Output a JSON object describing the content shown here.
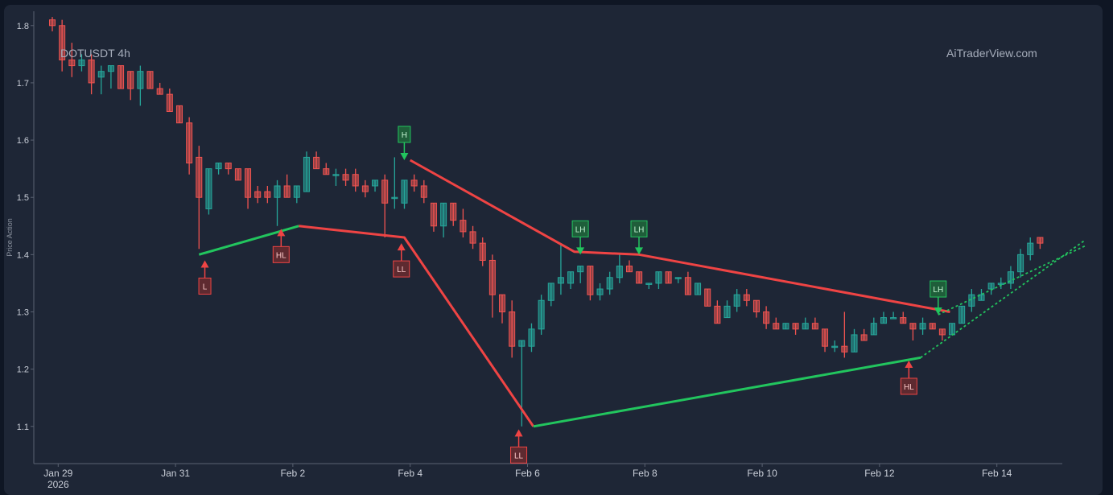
{
  "header": {
    "symbol": "DOTUSDT 4h",
    "brand": "AiTraderView.com"
  },
  "colors": {
    "background": "#1e2636",
    "up": "#26a69a",
    "down": "#ef5350",
    "support": "#22c55e",
    "resistance": "#ef4444",
    "axis_text": "#c9ced8"
  },
  "chart_data": {
    "type": "candlestick",
    "ylabel": "Price Action",
    "ylim": [
      1.035,
      1.825
    ],
    "y_ticks": [
      1.1,
      1.2,
      1.3,
      1.4,
      1.5,
      1.6,
      1.7,
      1.8
    ],
    "x_ticks": [
      {
        "t": 0.1,
        "label": "Jan 29",
        "sub": "2026"
      },
      {
        "t": 2.1,
        "label": "Jan 31"
      },
      {
        "t": 4.1,
        "label": "Feb 2"
      },
      {
        "t": 6.1,
        "label": "Feb 4"
      },
      {
        "t": 8.1,
        "label": "Feb 6"
      },
      {
        "t": 10.1,
        "label": "Feb 8"
      },
      {
        "t": 12.1,
        "label": "Feb 10"
      },
      {
        "t": 14.1,
        "label": "Feb 12"
      },
      {
        "t": 16.1,
        "label": "Feb 14"
      }
    ],
    "x_start_day": 0,
    "candle_step_days": 0.1667,
    "candles": [
      [
        1.81,
        1.815,
        1.79,
        1.8
      ],
      [
        1.8,
        1.81,
        1.72,
        1.74
      ],
      [
        1.74,
        1.77,
        1.71,
        1.73
      ],
      [
        1.73,
        1.75,
        1.72,
        1.74
      ],
      [
        1.74,
        1.75,
        1.68,
        1.7
      ],
      [
        1.71,
        1.73,
        1.68,
        1.72
      ],
      [
        1.72,
        1.73,
        1.69,
        1.73
      ],
      [
        1.73,
        1.73,
        1.69,
        1.69
      ],
      [
        1.72,
        1.72,
        1.67,
        1.69
      ],
      [
        1.69,
        1.73,
        1.66,
        1.72
      ],
      [
        1.72,
        1.72,
        1.69,
        1.69
      ],
      [
        1.69,
        1.7,
        1.68,
        1.68
      ],
      [
        1.68,
        1.69,
        1.65,
        1.65
      ],
      [
        1.66,
        1.66,
        1.63,
        1.63
      ],
      [
        1.63,
        1.64,
        1.54,
        1.56
      ],
      [
        1.57,
        1.59,
        1.41,
        1.5
      ],
      [
        1.48,
        1.55,
        1.47,
        1.55
      ],
      [
        1.55,
        1.56,
        1.54,
        1.56
      ],
      [
        1.56,
        1.56,
        1.54,
        1.55
      ],
      [
        1.55,
        1.55,
        1.53,
        1.53
      ],
      [
        1.55,
        1.55,
        1.48,
        1.5
      ],
      [
        1.51,
        1.52,
        1.49,
        1.5
      ],
      [
        1.51,
        1.52,
        1.49,
        1.5
      ],
      [
        1.5,
        1.53,
        1.45,
        1.52
      ],
      [
        1.52,
        1.54,
        1.5,
        1.5
      ],
      [
        1.5,
        1.52,
        1.49,
        1.52
      ],
      [
        1.51,
        1.58,
        1.51,
        1.57
      ],
      [
        1.57,
        1.58,
        1.55,
        1.55
      ],
      [
        1.55,
        1.56,
        1.54,
        1.54
      ],
      [
        1.54,
        1.55,
        1.52,
        1.54
      ],
      [
        1.54,
        1.55,
        1.52,
        1.53
      ],
      [
        1.54,
        1.55,
        1.51,
        1.52
      ],
      [
        1.52,
        1.53,
        1.5,
        1.51
      ],
      [
        1.52,
        1.53,
        1.51,
        1.53
      ],
      [
        1.53,
        1.54,
        1.43,
        1.49
      ],
      [
        1.5,
        1.57,
        1.48,
        1.5
      ],
      [
        1.49,
        1.53,
        1.48,
        1.53
      ],
      [
        1.53,
        1.54,
        1.51,
        1.52
      ],
      [
        1.52,
        1.53,
        1.49,
        1.5
      ],
      [
        1.49,
        1.49,
        1.44,
        1.45
      ],
      [
        1.45,
        1.49,
        1.43,
        1.49
      ],
      [
        1.49,
        1.49,
        1.45,
        1.46
      ],
      [
        1.46,
        1.48,
        1.43,
        1.44
      ],
      [
        1.44,
        1.45,
        1.41,
        1.42
      ],
      [
        1.42,
        1.43,
        1.38,
        1.39
      ],
      [
        1.39,
        1.4,
        1.29,
        1.33
      ],
      [
        1.33,
        1.33,
        1.28,
        1.3
      ],
      [
        1.3,
        1.32,
        1.22,
        1.24
      ],
      [
        1.24,
        1.25,
        1.1,
        1.25
      ],
      [
        1.24,
        1.28,
        1.23,
        1.27
      ],
      [
        1.27,
        1.33,
        1.26,
        1.32
      ],
      [
        1.32,
        1.35,
        1.31,
        1.35
      ],
      [
        1.35,
        1.42,
        1.33,
        1.36
      ],
      [
        1.35,
        1.37,
        1.34,
        1.37
      ],
      [
        1.37,
        1.38,
        1.35,
        1.38
      ],
      [
        1.38,
        1.38,
        1.32,
        1.33
      ],
      [
        1.33,
        1.35,
        1.32,
        1.34
      ],
      [
        1.34,
        1.37,
        1.33,
        1.36
      ],
      [
        1.36,
        1.4,
        1.35,
        1.38
      ],
      [
        1.38,
        1.39,
        1.37,
        1.37
      ],
      [
        1.37,
        1.37,
        1.35,
        1.35
      ],
      [
        1.35,
        1.35,
        1.34,
        1.35
      ],
      [
        1.35,
        1.37,
        1.34,
        1.37
      ],
      [
        1.37,
        1.37,
        1.35,
        1.35
      ],
      [
        1.36,
        1.36,
        1.35,
        1.36
      ],
      [
        1.36,
        1.37,
        1.33,
        1.33
      ],
      [
        1.33,
        1.35,
        1.33,
        1.35
      ],
      [
        1.34,
        1.34,
        1.31,
        1.31
      ],
      [
        1.31,
        1.32,
        1.28,
        1.28
      ],
      [
        1.29,
        1.32,
        1.29,
        1.31
      ],
      [
        1.31,
        1.34,
        1.3,
        1.33
      ],
      [
        1.33,
        1.34,
        1.31,
        1.32
      ],
      [
        1.32,
        1.32,
        1.29,
        1.3
      ],
      [
        1.3,
        1.31,
        1.27,
        1.28
      ],
      [
        1.28,
        1.29,
        1.27,
        1.27
      ],
      [
        1.27,
        1.28,
        1.27,
        1.28
      ],
      [
        1.28,
        1.28,
        1.26,
        1.27
      ],
      [
        1.27,
        1.29,
        1.27,
        1.28
      ],
      [
        1.28,
        1.29,
        1.27,
        1.27
      ],
      [
        1.27,
        1.27,
        1.23,
        1.24
      ],
      [
        1.24,
        1.25,
        1.23,
        1.24
      ],
      [
        1.24,
        1.3,
        1.22,
        1.23
      ],
      [
        1.23,
        1.27,
        1.23,
        1.26
      ],
      [
        1.26,
        1.27,
        1.25,
        1.25
      ],
      [
        1.26,
        1.29,
        1.26,
        1.28
      ],
      [
        1.28,
        1.3,
        1.28,
        1.29
      ],
      [
        1.29,
        1.3,
        1.29,
        1.29
      ],
      [
        1.29,
        1.3,
        1.28,
        1.28
      ],
      [
        1.28,
        1.28,
        1.25,
        1.27
      ],
      [
        1.27,
        1.29,
        1.26,
        1.28
      ],
      [
        1.28,
        1.28,
        1.27,
        1.27
      ],
      [
        1.27,
        1.27,
        1.25,
        1.26
      ],
      [
        1.26,
        1.28,
        1.26,
        1.28
      ],
      [
        1.28,
        1.31,
        1.28,
        1.31
      ],
      [
        1.31,
        1.34,
        1.3,
        1.33
      ],
      [
        1.32,
        1.34,
        1.32,
        1.33
      ],
      [
        1.34,
        1.35,
        1.33,
        1.35
      ],
      [
        1.35,
        1.36,
        1.34,
        1.35
      ],
      [
        1.35,
        1.38,
        1.34,
        1.37
      ],
      [
        1.37,
        1.41,
        1.36,
        1.4
      ],
      [
        1.4,
        1.43,
        1.39,
        1.42
      ],
      [
        1.43,
        1.43,
        1.41,
        1.42
      ]
    ],
    "resistance_line": [
      [
        6.1,
        1.565
      ],
      [
        8.9,
        1.405
      ],
      [
        10.0,
        1.4
      ],
      [
        15.3,
        1.3
      ]
    ],
    "support_lines": [
      [
        [
          2.5,
          1.4
        ],
        [
          4.2,
          1.45
        ],
        [
          6.0,
          1.43
        ],
        [
          8.2,
          1.1
        ],
        [
          14.8,
          1.22
        ]
      ],
      [
        [
          2.5,
          1.4
        ],
        [
          4.2,
          1.45
        ]
      ]
    ],
    "markers": [
      {
        "text": "L",
        "t": 2.6,
        "price": 1.39,
        "type": "low"
      },
      {
        "text": "HL",
        "t": 3.9,
        "price": 1.445,
        "type": "low"
      },
      {
        "text": "LL",
        "t": 5.95,
        "price": 1.42,
        "type": "low"
      },
      {
        "text": "H",
        "t": 6.0,
        "price": 1.565,
        "type": "high"
      },
      {
        "text": "LL",
        "t": 7.95,
        "price": 1.095,
        "type": "low"
      },
      {
        "text": "LH",
        "t": 9.0,
        "price": 1.4,
        "type": "high"
      },
      {
        "text": "LH",
        "t": 10.0,
        "price": 1.4,
        "type": "high"
      },
      {
        "text": "HL",
        "t": 14.6,
        "price": 1.215,
        "type": "low"
      },
      {
        "text": "LH",
        "t": 15.1,
        "price": 1.295,
        "type": "high"
      }
    ],
    "projections": [
      [
        [
          14.8,
          1.22
        ],
        [
          17.6,
          1.425
        ]
      ],
      [
        [
          15.1,
          1.295
        ],
        [
          17.6,
          1.415
        ]
      ]
    ]
  }
}
